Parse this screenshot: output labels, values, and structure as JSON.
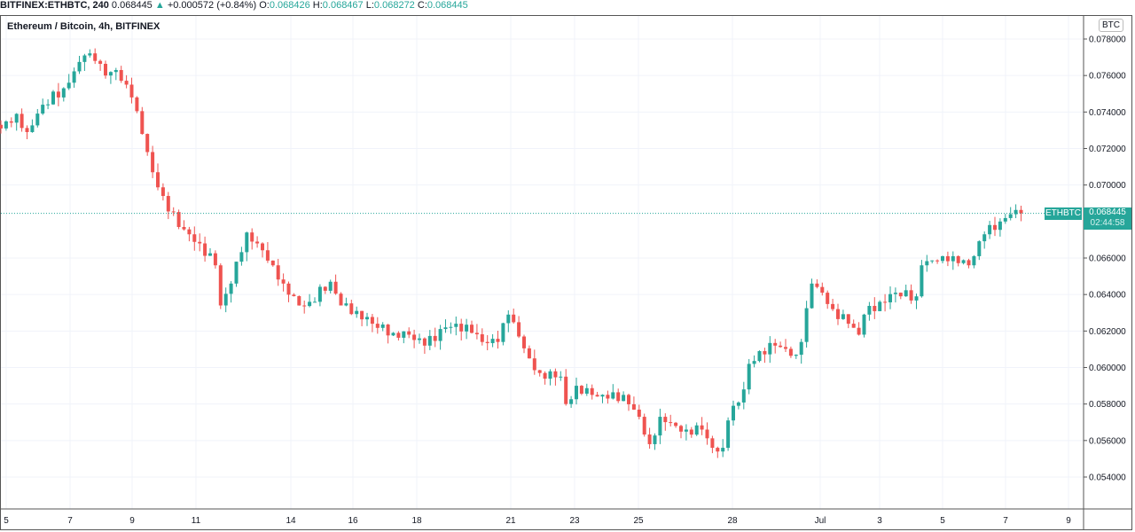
{
  "header": {
    "symbol": "BITFINEX:ETHBTC, 240",
    "last": "0.068445",
    "change": "+0.000572 (+0.84%)",
    "o_label": "O:",
    "o": "0.068426",
    "h_label": "H:",
    "h": "0.068467",
    "l_label": "L:",
    "l": "0.068272",
    "c_label": "C:",
    "c": "0.068445"
  },
  "legend": "Ethereum / Bitcoin, 4h, BITFINEX",
  "currency": "BTC",
  "last_price": {
    "symbol": "ETHBTC",
    "price": "0.068445",
    "countdown": "02:44:58",
    "value": 0.068445
  },
  "colors": {
    "up": "#26a69a",
    "down": "#ef5350",
    "grid": "#f0f3fa"
  },
  "chart_data": {
    "type": "candlestick",
    "price_ticks": [
      "0.078000",
      "0.076000",
      "0.074000",
      "0.072000",
      "0.070000",
      "0.066000",
      "0.064000",
      "0.062000",
      "0.060000",
      "0.058000",
      "0.056000",
      "0.054000"
    ],
    "time_ticks": [
      "5",
      "7",
      "9",
      "11",
      "14",
      "16",
      "18",
      "21",
      "23",
      "25",
      "28",
      "Jul",
      "3",
      "5",
      "7",
      "9"
    ],
    "ylim": [
      0.0526,
      0.0789
    ],
    "close_path_by_candle_index": [
      [
        0,
        0.0731
      ],
      [
        3,
        0.0739
      ],
      [
        5,
        0.0729
      ],
      [
        8,
        0.0744
      ],
      [
        12,
        0.0753
      ],
      [
        16,
        0.0771
      ],
      [
        18,
        0.0768
      ],
      [
        20,
        0.076
      ],
      [
        22,
        0.0763
      ],
      [
        24,
        0.0755
      ],
      [
        25,
        0.0748
      ],
      [
        27,
        0.0728
      ],
      [
        29,
        0.0707
      ],
      [
        31,
        0.0694
      ],
      [
        34,
        0.0677
      ],
      [
        36,
        0.0673
      ],
      [
        38,
        0.0668
      ],
      [
        41,
        0.0656
      ],
      [
        42,
        0.0634
      ],
      [
        44,
        0.0646
      ],
      [
        45,
        0.0658
      ],
      [
        47,
        0.0674
      ],
      [
        49,
        0.0668
      ],
      [
        52,
        0.0656
      ],
      [
        54,
        0.0646
      ],
      [
        57,
        0.0634
      ],
      [
        59,
        0.0636
      ],
      [
        63,
        0.0647
      ],
      [
        65,
        0.0634
      ],
      [
        68,
        0.0631
      ],
      [
        71,
        0.0624
      ],
      [
        75,
        0.0619
      ],
      [
        78,
        0.0618
      ],
      [
        81,
        0.0612
      ],
      [
        85,
        0.0622
      ],
      [
        87,
        0.0624
      ],
      [
        90,
        0.0619
      ],
      [
        92,
        0.0614
      ],
      [
        95,
        0.0614
      ],
      [
        97,
        0.0629
      ],
      [
        99,
        0.0617
      ],
      [
        101,
        0.0605
      ],
      [
        103,
        0.0597
      ],
      [
        107,
        0.0595
      ],
      [
        108,
        0.058
      ],
      [
        110,
        0.059
      ],
      [
        113,
        0.0585
      ],
      [
        116,
        0.0583
      ],
      [
        119,
        0.0585
      ],
      [
        122,
        0.0573
      ],
      [
        124,
        0.0558
      ],
      [
        126,
        0.0573
      ],
      [
        129,
        0.0568
      ],
      [
        131,
        0.0566
      ],
      [
        134,
        0.0566
      ],
      [
        136,
        0.0556
      ],
      [
        138,
        0.0556
      ],
      [
        139,
        0.0571
      ],
      [
        142,
        0.0588
      ],
      [
        143,
        0.0602
      ],
      [
        145,
        0.0609
      ],
      [
        148,
        0.0612
      ],
      [
        152,
        0.0607
      ],
      [
        153,
        0.0614
      ],
      [
        155,
        0.0646
      ],
      [
        157,
        0.0641
      ],
      [
        159,
        0.0632
      ],
      [
        162,
        0.0624
      ],
      [
        164,
        0.0618
      ],
      [
        165,
        0.0629
      ],
      [
        168,
        0.0636
      ],
      [
        171,
        0.0641
      ],
      [
        175,
        0.0639
      ],
      [
        176,
        0.0656
      ],
      [
        180,
        0.0661
      ],
      [
        182,
        0.0661
      ],
      [
        185,
        0.0656
      ],
      [
        186,
        0.0661
      ],
      [
        188,
        0.0673
      ],
      [
        191,
        0.068
      ],
      [
        193,
        0.0684
      ],
      [
        195,
        0.06845
      ]
    ]
  }
}
